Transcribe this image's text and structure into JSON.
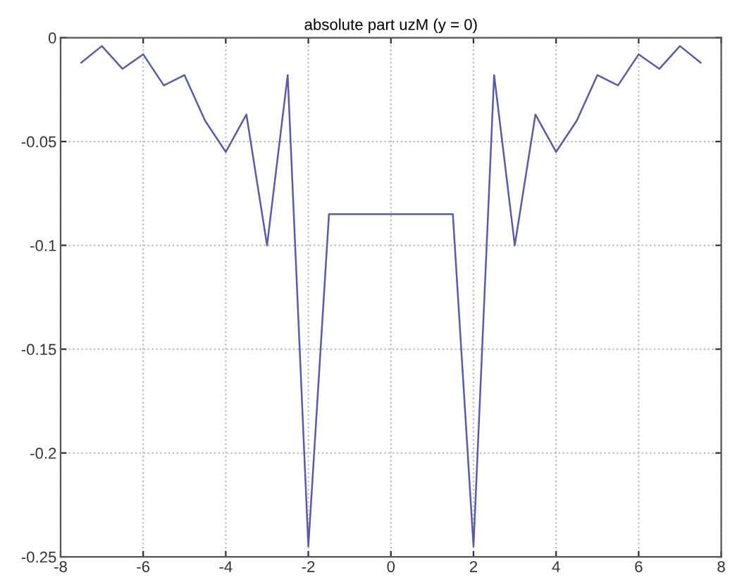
{
  "chart_data": {
    "type": "line",
    "title": "absolute part uzM (y = 0)",
    "x": [
      -7.5,
      -7,
      -6.5,
      -6,
      -5.5,
      -5,
      -4.5,
      -4,
      -3.5,
      -3,
      -2.5,
      -2,
      -1.5,
      -1,
      -0.5,
      0,
      0.5,
      1,
      1.5,
      2,
      2.5,
      3,
      3.5,
      4,
      4.5,
      5,
      5.5,
      6,
      6.5,
      7,
      7.5
    ],
    "series": [
      {
        "color": "#5a5aa6",
        "values": [
          -0.012,
          -0.004,
          -0.015,
          -0.008,
          -0.023,
          -0.018,
          -0.04,
          -0.055,
          -0.037,
          -0.1,
          -0.018,
          -0.245,
          -0.085,
          -0.085,
          -0.085,
          -0.085,
          -0.085,
          -0.085,
          -0.085,
          -0.245,
          -0.018,
          -0.1,
          -0.037,
          -0.055,
          -0.04,
          -0.018,
          -0.023,
          -0.008,
          -0.015,
          -0.004,
          -0.012
        ]
      }
    ],
    "xlim": [
      -8,
      8
    ],
    "xticks": [
      -8,
      -6,
      -4,
      -2,
      0,
      2,
      4,
      6,
      8
    ],
    "ylim": [
      -0.25,
      0
    ],
    "yticks": [
      -0.25,
      -0.2,
      -0.15,
      -0.1,
      -0.05,
      0
    ],
    "grid": true,
    "line_style": "solid"
  }
}
